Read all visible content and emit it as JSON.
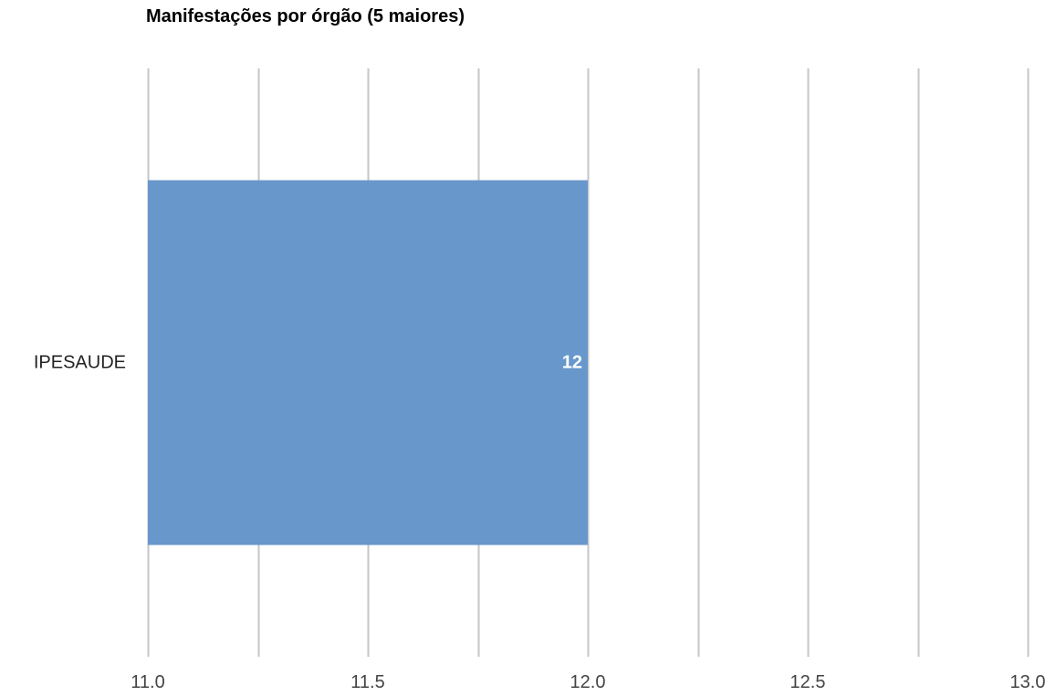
{
  "chart_data": {
    "type": "bar",
    "orientation": "horizontal",
    "title": "Manifestações por órgão (5 maiores)",
    "xlabel": "",
    "ylabel": "",
    "categories": [
      "IPESAUDE"
    ],
    "values": [
      12
    ],
    "data_labels": [
      "12"
    ],
    "xlim": [
      11.0,
      13.0
    ],
    "x_ticks": [
      11.0,
      11.5,
      12.0,
      12.5,
      13.0
    ],
    "x_tick_labels": [
      "11.0",
      "11.5",
      "12.0",
      "12.5",
      "13.0"
    ],
    "grid": true,
    "legend": "none",
    "colors": {
      "bar": "#6797cb",
      "gridline": "#c6c6c6",
      "data_label": "#ffffff"
    }
  }
}
